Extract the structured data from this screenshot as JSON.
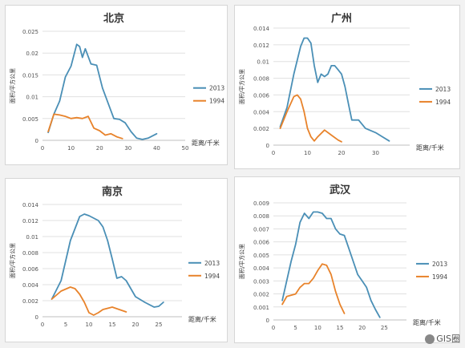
{
  "chart_data": [
    {
      "type": "line",
      "title": "北京",
      "xlabel": "距离/千米",
      "ylabel": "面积/平方公里",
      "xlim": [
        0,
        50
      ],
      "xticks": [
        0,
        10,
        20,
        30,
        40,
        50
      ],
      "ylim": [
        0,
        0.025
      ],
      "yticks": [
        0,
        0.005,
        0.01,
        0.015,
        0.02,
        0.025
      ],
      "ytick_labels": [
        "0",
        "0.005",
        "0.01",
        "0.015",
        "0.02",
        "0.025"
      ],
      "grid": true,
      "legend_position": "right",
      "series": [
        {
          "name": "2013",
          "color": "#4a8fb6",
          "points": [
            [
              2,
              0.0018
            ],
            [
              4,
              0.006
            ],
            [
              6,
              0.009
            ],
            [
              8,
              0.0145
            ],
            [
              10,
              0.017
            ],
            [
              12,
              0.022
            ],
            [
              13,
              0.0215
            ],
            [
              14,
              0.019
            ],
            [
              15,
              0.021
            ],
            [
              17,
              0.0175
            ],
            [
              19,
              0.0172
            ],
            [
              21,
              0.012
            ],
            [
              23,
              0.0085
            ],
            [
              25,
              0.005
            ],
            [
              27,
              0.0048
            ],
            [
              29,
              0.004
            ],
            [
              31,
              0.002
            ],
            [
              33,
              0.0005
            ],
            [
              35,
              0.0002
            ],
            [
              37,
              0.0005
            ],
            [
              40,
              0.0015
            ]
          ]
        },
        {
          "name": "1994",
          "color": "#e8832b",
          "points": [
            [
              2,
              0.002
            ],
            [
              4,
              0.006
            ],
            [
              6,
              0.0058
            ],
            [
              8,
              0.0055
            ],
            [
              10,
              0.005
            ],
            [
              12,
              0.0052
            ],
            [
              14,
              0.005
            ],
            [
              16,
              0.0055
            ],
            [
              18,
              0.0028
            ],
            [
              20,
              0.0022
            ],
            [
              22,
              0.0012
            ],
            [
              24,
              0.0015
            ],
            [
              26,
              0.0008
            ],
            [
              28,
              0.0004
            ]
          ]
        }
      ]
    },
    {
      "type": "line",
      "title": "广州",
      "xlabel": "距离/千米",
      "ylabel": "面积/平方公里",
      "xlim": [
        0,
        40
      ],
      "xticks": [
        0,
        10,
        20,
        30
      ],
      "ylim": [
        0,
        0.014
      ],
      "yticks": [
        0,
        0.002,
        0.004,
        0.006,
        0.008,
        0.01,
        0.012,
        0.014
      ],
      "ytick_labels": [
        "0",
        "0.002",
        "0.004",
        "0.006",
        "0.008",
        "0.01",
        "0.012",
        "0.014"
      ],
      "grid": true,
      "legend_position": "right",
      "series": [
        {
          "name": "2013",
          "color": "#4a8fb6",
          "points": [
            [
              2,
              0.0022
            ],
            [
              4,
              0.0045
            ],
            [
              6,
              0.0085
            ],
            [
              8,
              0.0118
            ],
            [
              9,
              0.0128
            ],
            [
              10,
              0.0128
            ],
            [
              11,
              0.0122
            ],
            [
              12,
              0.0095
            ],
            [
              13,
              0.0075
            ],
            [
              14,
              0.0085
            ],
            [
              15,
              0.0082
            ],
            [
              16,
              0.0085
            ],
            [
              17,
              0.0095
            ],
            [
              18,
              0.0095
            ],
            [
              19,
              0.009
            ],
            [
              20,
              0.0085
            ],
            [
              21,
              0.007
            ],
            [
              22,
              0.005
            ],
            [
              23,
              0.003
            ],
            [
              25,
              0.003
            ],
            [
              27,
              0.002
            ],
            [
              30,
              0.0015
            ],
            [
              32,
              0.001
            ],
            [
              34,
              0.0005
            ]
          ]
        },
        {
          "name": "1994",
          "color": "#e8832b",
          "points": [
            [
              2,
              0.002
            ],
            [
              4,
              0.004
            ],
            [
              6,
              0.0058
            ],
            [
              7,
              0.006
            ],
            [
              8,
              0.0055
            ],
            [
              9,
              0.004
            ],
            [
              10,
              0.002
            ],
            [
              11,
              0.001
            ],
            [
              12,
              0.0005
            ],
            [
              13,
              0.001
            ],
            [
              15,
              0.0018
            ],
            [
              17,
              0.0012
            ],
            [
              19,
              0.0006
            ],
            [
              20,
              0.0004
            ]
          ]
        }
      ]
    },
    {
      "type": "line",
      "title": "南京",
      "xlabel": "距离/千米",
      "ylabel": "面积/平方公里",
      "xlim": [
        0,
        30
      ],
      "xticks": [
        0,
        5,
        10,
        15,
        20,
        25
      ],
      "ylim": [
        0,
        0.014
      ],
      "yticks": [
        0,
        0.002,
        0.004,
        0.006,
        0.008,
        0.01,
        0.012,
        0.014
      ],
      "ytick_labels": [
        "0",
        "0.002",
        "0.004",
        "0.006",
        "0.008",
        "0.01",
        "0.012",
        "0.014"
      ],
      "grid": true,
      "legend_position": "right",
      "series": [
        {
          "name": "2013",
          "color": "#4a8fb6",
          "points": [
            [
              2,
              0.0022
            ],
            [
              4,
              0.0045
            ],
            [
              6,
              0.0095
            ],
            [
              8,
              0.0125
            ],
            [
              9,
              0.0128
            ],
            [
              10,
              0.0126
            ],
            [
              12,
              0.012
            ],
            [
              13,
              0.0112
            ],
            [
              14,
              0.0095
            ],
            [
              15,
              0.0072
            ],
            [
              16,
              0.0048
            ],
            [
              17,
              0.005
            ],
            [
              18,
              0.0045
            ],
            [
              20,
              0.0025
            ],
            [
              22,
              0.0018
            ],
            [
              24,
              0.0012
            ],
            [
              25,
              0.0013
            ],
            [
              26,
              0.0018
            ]
          ]
        },
        {
          "name": "1994",
          "color": "#e8832b",
          "points": [
            [
              2,
              0.0022
            ],
            [
              4,
              0.0032
            ],
            [
              6,
              0.0037
            ],
            [
              7,
              0.0035
            ],
            [
              8,
              0.0028
            ],
            [
              9,
              0.0018
            ],
            [
              10,
              0.0005
            ],
            [
              11,
              0.0002
            ],
            [
              12,
              0.0005
            ],
            [
              13,
              0.0009
            ],
            [
              15,
              0.0012
            ],
            [
              16,
              0.001
            ],
            [
              17,
              0.0008
            ],
            [
              18,
              0.0006
            ]
          ]
        }
      ]
    },
    {
      "type": "line",
      "title": "武汉",
      "xlabel": "距离/千米",
      "ylabel": "面积/平方公里",
      "xlim": [
        0,
        30
      ],
      "xticks": [
        0,
        5,
        10,
        15,
        20,
        25
      ],
      "ylim": [
        0,
        0.009
      ],
      "yticks": [
        0,
        0.001,
        0.002,
        0.003,
        0.004,
        0.005,
        0.006,
        0.007,
        0.008,
        0.009
      ],
      "ytick_labels": [
        "0",
        "0.001",
        "0.002",
        "0.003",
        "0.004",
        "0.005",
        "0.006",
        "0.007",
        "0.008",
        "0.009"
      ],
      "grid": true,
      "legend_position": "right",
      "series": [
        {
          "name": "2013",
          "color": "#4a8fb6",
          "points": [
            [
              2,
              0.0015
            ],
            [
              4,
              0.0045
            ],
            [
              5,
              0.0058
            ],
            [
              6,
              0.0075
            ],
            [
              7,
              0.0082
            ],
            [
              8,
              0.0078
            ],
            [
              9,
              0.0083
            ],
            [
              10,
              0.0083
            ],
            [
              11,
              0.0082
            ],
            [
              12,
              0.0078
            ],
            [
              13,
              0.0078
            ],
            [
              14,
              0.007
            ],
            [
              15,
              0.0066
            ],
            [
              16,
              0.0065
            ],
            [
              17,
              0.0055
            ],
            [
              18,
              0.0045
            ],
            [
              19,
              0.0035
            ],
            [
              20,
              0.003
            ],
            [
              21,
              0.0025
            ],
            [
              22,
              0.0015
            ],
            [
              23,
              0.0008
            ],
            [
              24,
              0.0002
            ]
          ]
        },
        {
          "name": "1994",
          "color": "#e8832b",
          "points": [
            [
              2,
              0.0012
            ],
            [
              3,
              0.0018
            ],
            [
              5,
              0.002
            ],
            [
              6,
              0.0025
            ],
            [
              7,
              0.0028
            ],
            [
              8,
              0.0028
            ],
            [
              9,
              0.0032
            ],
            [
              10,
              0.0038
            ],
            [
              11,
              0.0043
            ],
            [
              12,
              0.0042
            ],
            [
              13,
              0.0035
            ],
            [
              14,
              0.0022
            ],
            [
              15,
              0.0012
            ],
            [
              16,
              0.0005
            ]
          ]
        }
      ]
    }
  ],
  "watermark": "GIS圈"
}
